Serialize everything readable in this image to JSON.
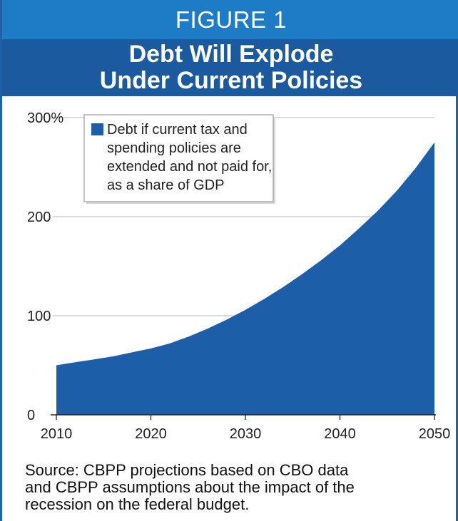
{
  "header": {
    "figure_label": "FIGURE 1",
    "title_line1": "Debt Will Explode",
    "title_line2": "Under Current Policies"
  },
  "colors": {
    "header_band": "#1e7cc6",
    "title_band": "#1c5aa0",
    "area_fill": "#1d5ea8",
    "gridline": "#c8c8c8"
  },
  "chart_data": {
    "type": "area",
    "x": [
      2010,
      2012,
      2014,
      2016,
      2018,
      2020,
      2022,
      2024,
      2026,
      2028,
      2030,
      2032,
      2034,
      2036,
      2038,
      2040,
      2042,
      2044,
      2046,
      2048,
      2050
    ],
    "series": [
      {
        "name": "Debt if current tax and spending policies are extended and not paid for, as a share of GDP",
        "values": [
          50,
          53,
          56,
          59,
          63,
          67,
          72,
          79,
          87,
          96,
          106,
          117,
          129,
          142,
          156,
          171,
          188,
          206,
          226,
          249,
          275
        ]
      }
    ],
    "ylim": [
      0,
      300
    ],
    "y_ticks": [
      0,
      100,
      200,
      300
    ],
    "y_tick_labels": [
      "0",
      "100",
      "200",
      "300%"
    ],
    "x_ticks": [
      2010,
      2020,
      2030,
      2040,
      2050
    ],
    "x_tick_labels": [
      "2010",
      "2020",
      "2030",
      "2040",
      "2050"
    ],
    "grid": true,
    "legend_placement": "top-left",
    "legend_text": [
      "Debt if current tax and",
      "spending policies are",
      "extended and not paid for,",
      "as a share of GDP"
    ]
  },
  "source": {
    "line1": "Source: CBPP projections based on CBO data",
    "line2": "and CBPP assumptions about the impact of the",
    "line3": "recession on the federal budget."
  }
}
